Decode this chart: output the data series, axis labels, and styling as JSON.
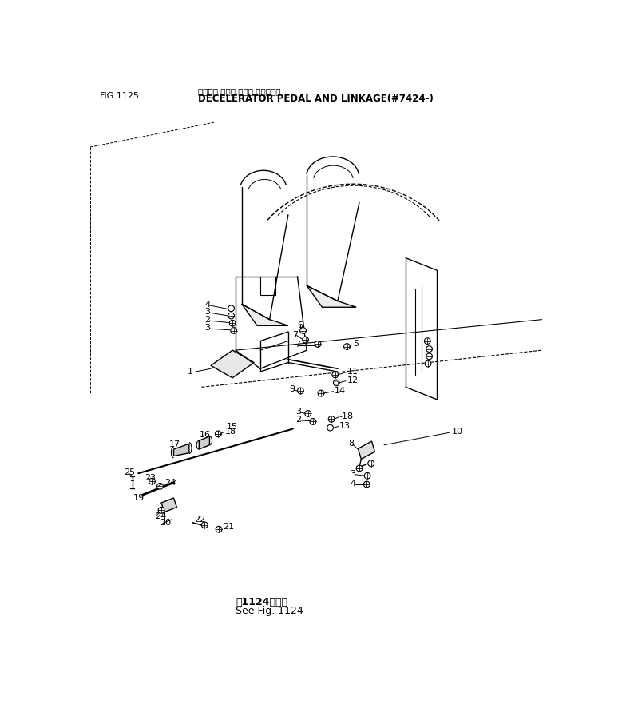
{
  "title_japanese": "デクセル ペダル および リンケージ",
  "title_english": "DECELERATOR PEDAL AND LINKAGE(#7424-)",
  "fig_number": "FIG.1125",
  "note_japanese": "第1124図参照",
  "note_english": "See Fig. 1124",
  "bg_color": "#ffffff",
  "lc": "#000000",
  "fig_width": 7.79,
  "fig_height": 8.92
}
